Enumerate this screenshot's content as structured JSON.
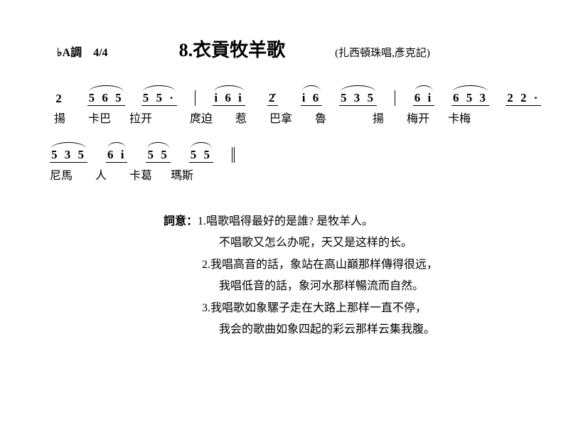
{
  "header": {
    "key": "♭A調　4/4",
    "title": "8.衣貢牧羊歌",
    "credit": "(扎西頓珠唱,彥克記)"
  },
  "score": {
    "line1": {
      "groups": [
        {
          "notes": "2",
          "slur": false,
          "under": false,
          "lyric": "揚"
        },
        {
          "notes": "5 6 5",
          "slur": true,
          "under": true,
          "lyric": "卡巴"
        },
        {
          "notes": "5 5 ·",
          "slur": true,
          "under": true,
          "lyric": "拉开"
        },
        {
          "notes": "i 6 i",
          "slur": true,
          "under": true,
          "lyric": "庹迫",
          "bar": true
        },
        {
          "notes": "2̇",
          "slur": false,
          "under": true,
          "lyric": "惹"
        },
        {
          "notes": "i 6",
          "slur": true,
          "under": true,
          "lyric": "巴拿"
        },
        {
          "notes": "5 3 5",
          "slur": true,
          "under": true,
          "lyric": "魯"
        },
        {
          "notes": "6 i",
          "slur": true,
          "under": true,
          "lyric": "揚",
          "bar": true
        },
        {
          "notes": "6 5 3",
          "slur": true,
          "under": true,
          "lyric": "梅开"
        },
        {
          "notes": "2 2 ·",
          "slur": false,
          "under": true,
          "lyric": "卡梅"
        }
      ]
    },
    "line2": {
      "groups": [
        {
          "notes": "5 3 5",
          "slur": true,
          "under": true,
          "lyric": "尼馬"
        },
        {
          "notes": "6 i",
          "slur": true,
          "under": true,
          "lyric": "人"
        },
        {
          "notes": "5 5",
          "slur": true,
          "under": true,
          "lyric": "卡葛"
        },
        {
          "notes": "5 5",
          "slur": true,
          "under": true,
          "lyric": "瑪斯",
          "end": true
        }
      ]
    }
  },
  "verses": {
    "label": "詞意：",
    "items": [
      {
        "n": "1.",
        "a": "唱歌唱得最好的是誰? 是牧羊人。",
        "b": "不唱歌又怎么办呢，天又是这样的长。"
      },
      {
        "n": "2.",
        "a": "我唱高音的話，象站在高山巔那样傳得很远，",
        "b": "我唱低音的話，象河水那样暢流而自然。"
      },
      {
        "n": "3.",
        "a": "我唱歌如象騾子走在大路上那样一直不停，",
        "b": "我会的歌曲如象四起的彩云那样云集我腹。"
      }
    ]
  }
}
